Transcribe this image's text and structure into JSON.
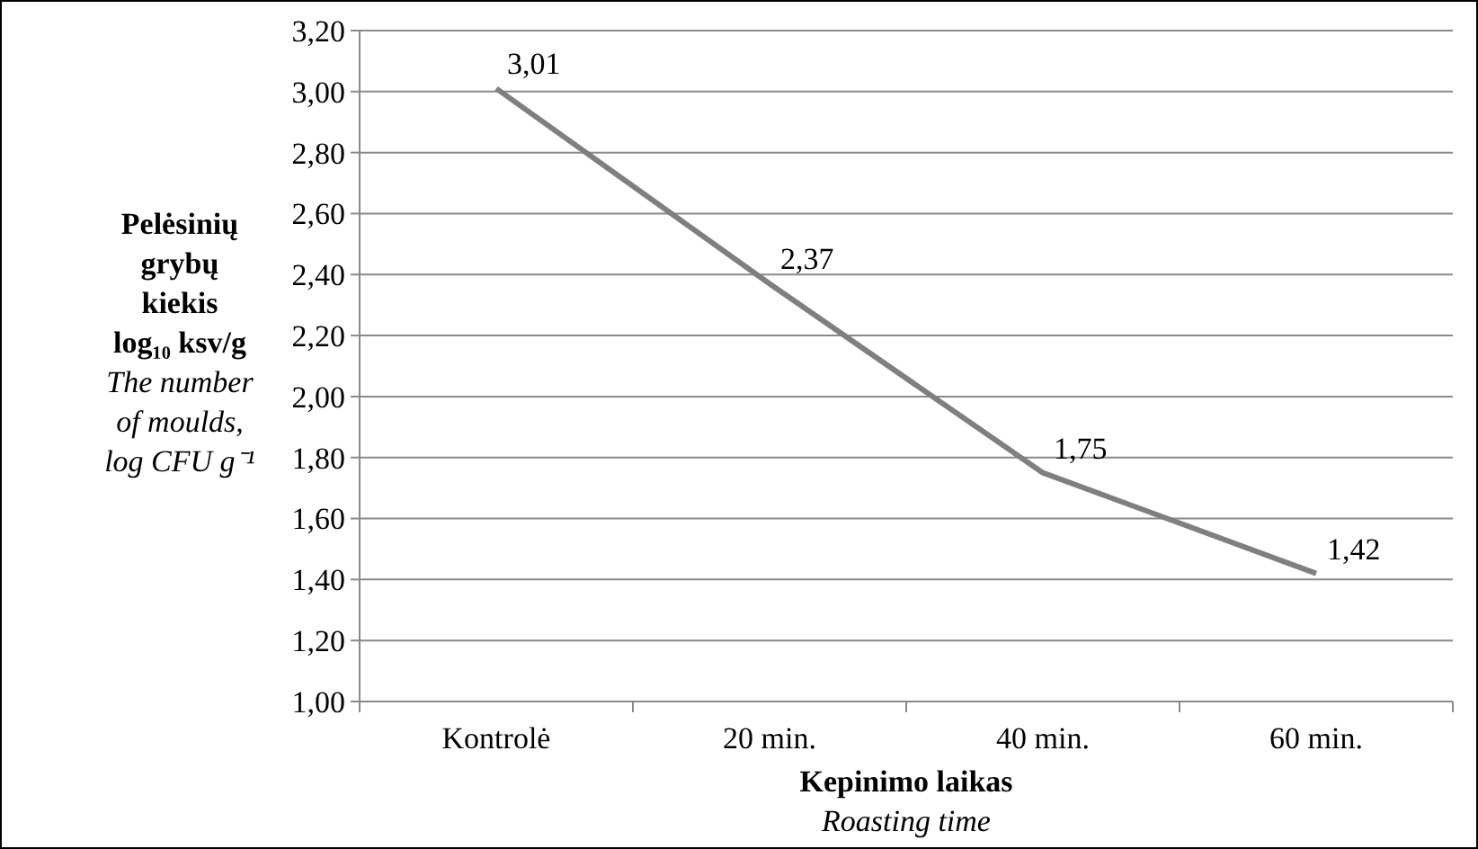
{
  "chart_data": {
    "type": "line",
    "xlabel": "Kepinimo laikas\nRoasting time",
    "ylabel": "Pelėsinių grybų kiekis log₁₀ ksv/g\nThe number of moulds, log CFU g⁻¹",
    "categories": [
      "Kontrolė",
      "20 min.",
      "40 min.",
      "60 min."
    ],
    "series": [
      {
        "color": "#7f7f7f",
        "values": [
          3.01,
          2.37,
          1.75,
          1.42
        ],
        "value_labels": [
          "3,01",
          "2,37",
          "1,75",
          "1,42"
        ]
      }
    ],
    "ylim": [
      1,
      3.2
    ],
    "yticks": [
      {
        "value": 1,
        "label": "1,00"
      },
      {
        "value": 1.2,
        "label": "1,20"
      },
      {
        "value": 1.4,
        "label": "1,40"
      },
      {
        "value": 1.6,
        "label": "1,60"
      },
      {
        "value": 1.8,
        "label": "1,80"
      },
      {
        "value": 2,
        "label": "2,00"
      },
      {
        "value": 2.2,
        "label": "2,20"
      },
      {
        "value": 2.4,
        "label": "2,40"
      },
      {
        "value": 2.6,
        "label": "2,60"
      },
      {
        "value": 2.8,
        "label": "2,80"
      },
      {
        "value": 3,
        "label": "3,00"
      },
      {
        "value": 3.2,
        "label": "3,20"
      }
    ],
    "grid": "y",
    "marker": "none",
    "line_style": "solid"
  }
}
